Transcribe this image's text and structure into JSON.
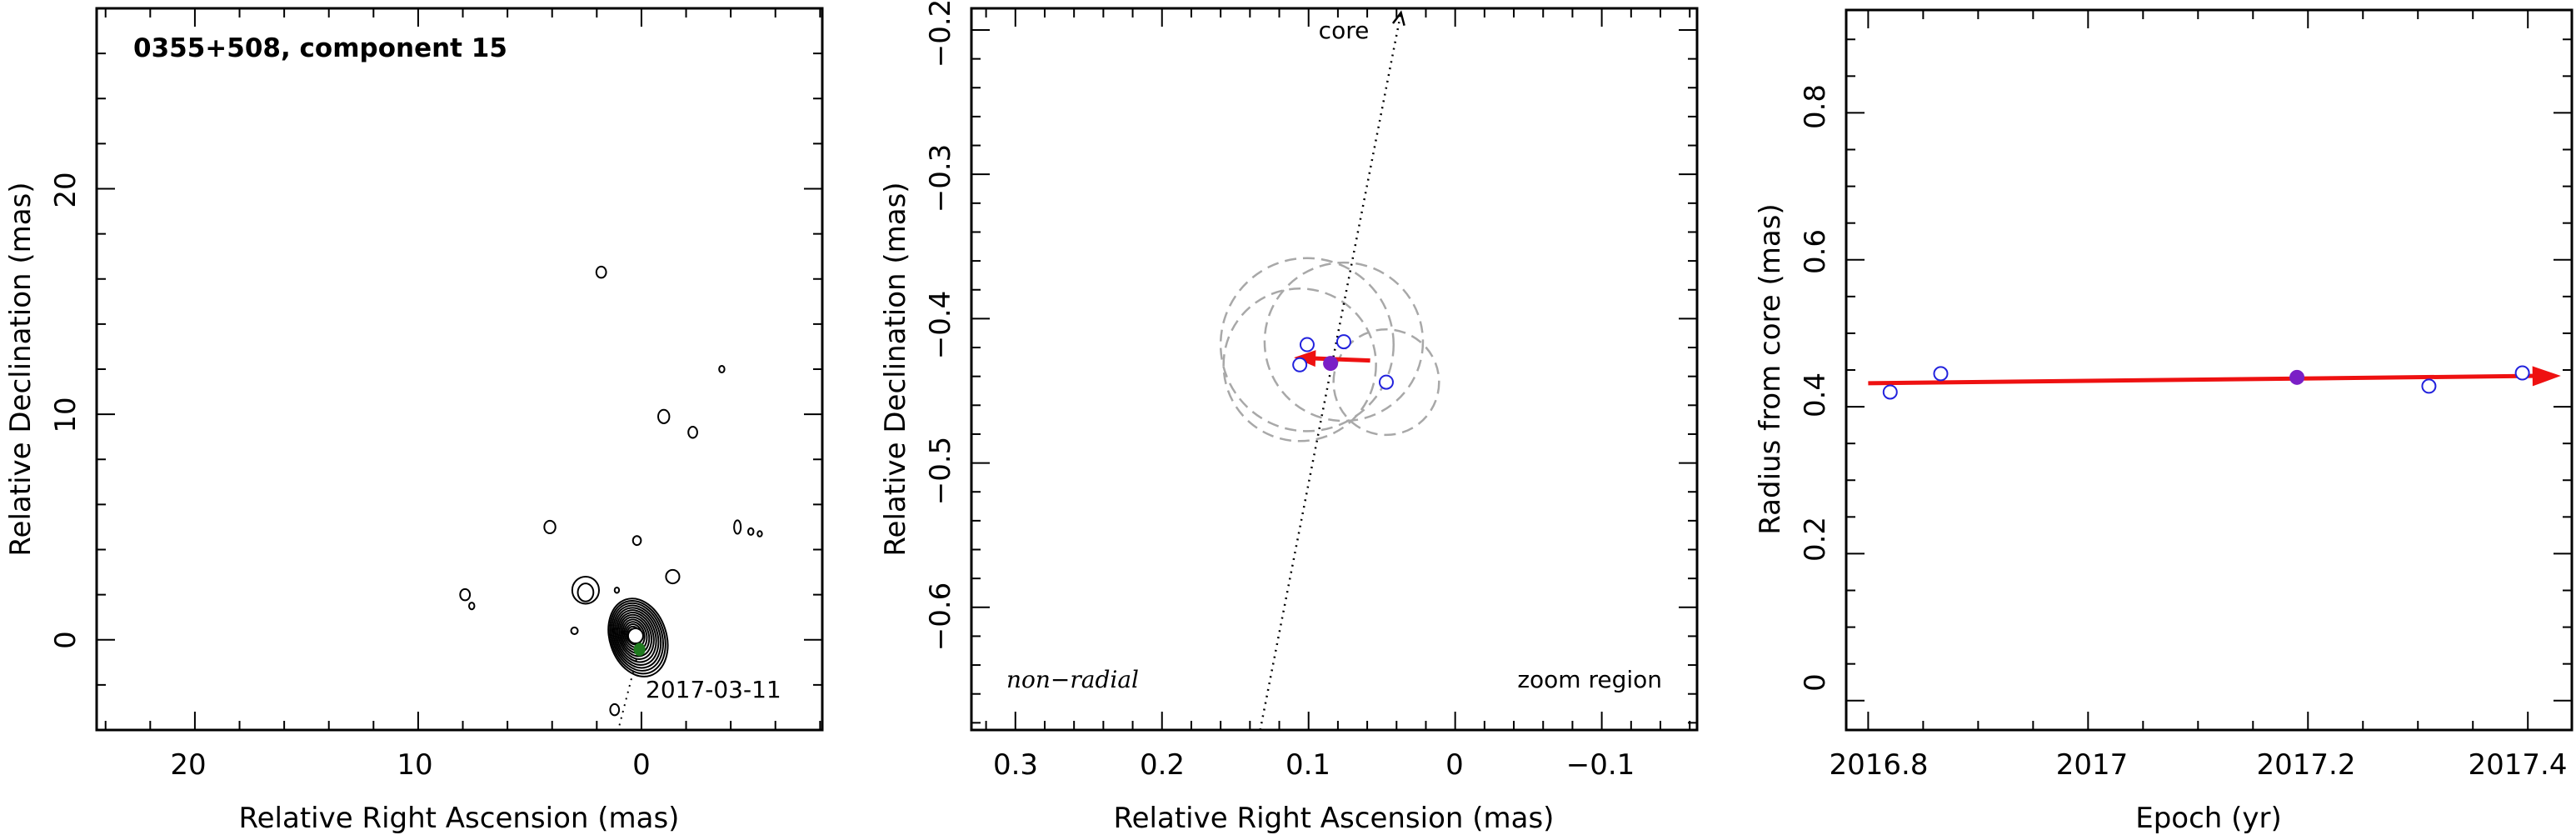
{
  "chart_data": [
    {
      "type": "contour",
      "title": "0355+508, component 15",
      "xlabel": "Relative Right Ascension (mas)",
      "ylabel": "Relative Declination (mas)",
      "xlim": [
        24.4,
        -8.1
      ],
      "ylim": [
        -4.0,
        28.0
      ],
      "xticks": [
        20,
        10,
        0
      ],
      "yticks": [
        0,
        10,
        20
      ],
      "annotations": [
        "2017-03-11"
      ],
      "colors": {
        "contour": "#000000",
        "component": "#1f7a1f",
        "direction_line": "#000000"
      },
      "core_direction": {
        "x": [
          0.0,
          1.3
        ],
        "y": [
          0.0,
          -5.0
        ]
      },
      "component_position": {
        "ra": 0.085,
        "dec": -0.43
      },
      "contour_islands": [
        {
          "ra": 1.8,
          "dec": 16.3,
          "rx": 0.22,
          "ry": 0.25
        },
        {
          "ra": -3.6,
          "dec": 12.0,
          "rx": 0.12,
          "ry": 0.15
        },
        {
          "ra": -1.0,
          "dec": 9.9,
          "rx": 0.25,
          "ry": 0.3
        },
        {
          "ra": -2.3,
          "dec": 9.2,
          "rx": 0.2,
          "ry": 0.25
        },
        {
          "ra": 4.1,
          "dec": 5.0,
          "rx": 0.25,
          "ry": 0.28
        },
        {
          "ra": 0.2,
          "dec": 4.4,
          "rx": 0.18,
          "ry": 0.2
        },
        {
          "ra": -4.3,
          "dec": 5.0,
          "rx": 0.15,
          "ry": 0.3
        },
        {
          "ra": -4.9,
          "dec": 4.8,
          "rx": 0.12,
          "ry": 0.15
        },
        {
          "ra": -5.3,
          "dec": 4.7,
          "rx": 0.1,
          "ry": 0.12
        },
        {
          "ra": -1.4,
          "dec": 2.8,
          "rx": 0.3,
          "ry": 0.3
        },
        {
          "ra": 7.9,
          "dec": 2.0,
          "rx": 0.22,
          "ry": 0.25
        },
        {
          "ra": 7.6,
          "dec": 1.5,
          "rx": 0.12,
          "ry": 0.15
        },
        {
          "ra": 2.5,
          "dec": 2.2,
          "rx": 0.6,
          "ry": 0.6
        },
        {
          "ra": 1.1,
          "dec": 2.2,
          "rx": 0.1,
          "ry": 0.12
        },
        {
          "ra": 3.0,
          "dec": 0.4,
          "rx": 0.15,
          "ry": 0.15
        },
        {
          "ra": 1.2,
          "dec": -3.1,
          "rx": 0.2,
          "ry": 0.25
        }
      ]
    },
    {
      "type": "scatter",
      "xlabel": "Relative Right Ascension (mas)",
      "ylabel": "Relative Declination (mas)",
      "xlim": [
        0.33,
        -0.165
      ],
      "ylim": [
        -0.685,
        -0.185
      ],
      "xticks": [
        0.3,
        0.2,
        0.1,
        0,
        -0.1
      ],
      "yticks": [
        -0.2,
        -0.3,
        -0.4,
        -0.5,
        -0.6
      ],
      "annotations": [
        "core",
        "non−radial",
        "zoom region"
      ],
      "colors": {
        "open_points": "#2222dd",
        "filled_point": "#7a1fc6",
        "arrow": "#ee1111",
        "circles": "#a8a8a8"
      },
      "points": [
        {
          "x": 0.106,
          "y": -0.432
        },
        {
          "x": 0.101,
          "y": -0.418
        },
        {
          "x": 0.076,
          "y": -0.416
        },
        {
          "x": 0.047,
          "y": -0.444
        }
      ],
      "highlight_point": {
        "x": 0.085,
        "y": -0.431
      },
      "error_circles": [
        {
          "x": 0.101,
          "y": -0.418,
          "r": 0.059
        },
        {
          "x": 0.076,
          "y": -0.416,
          "r": 0.054
        },
        {
          "x": 0.106,
          "y": -0.432,
          "r": 0.052
        },
        {
          "x": 0.047,
          "y": -0.444,
          "r": 0.036
        }
      ],
      "motion_arrow": {
        "x": [
          0.058,
          0.11
        ],
        "y": [
          -0.429,
          -0.427
        ]
      },
      "core_line": {
        "x": [
          0.133,
          0.037
        ],
        "y": [
          -0.685,
          -0.188
        ]
      }
    },
    {
      "type": "scatter",
      "xlabel": "Epoch (yr)",
      "ylabel": "Radius from core (mas)",
      "xlim": [
        2016.78,
        2017.44
      ],
      "ylim": [
        -0.04,
        0.94
      ],
      "xticks": [
        2016.8,
        2017,
        2017.2,
        2017.4
      ],
      "yticks": [
        0,
        0.2,
        0.4,
        0.6,
        0.8
      ],
      "colors": {
        "open_points": "#2222dd",
        "filled_point": "#7a1fc6",
        "fit_line": "#ee1111"
      },
      "points": [
        {
          "x": 2016.82,
          "y": 0.42
        },
        {
          "x": 2016.866,
          "y": 0.445
        },
        {
          "x": 2017.31,
          "y": 0.428
        },
        {
          "x": 2017.395,
          "y": 0.446
        }
      ],
      "highlight_point": {
        "x": 2017.19,
        "y": 0.44
      },
      "fit_line": {
        "x": [
          2016.8,
          2017.43
        ],
        "y": [
          0.432,
          0.442
        ]
      }
    }
  ]
}
